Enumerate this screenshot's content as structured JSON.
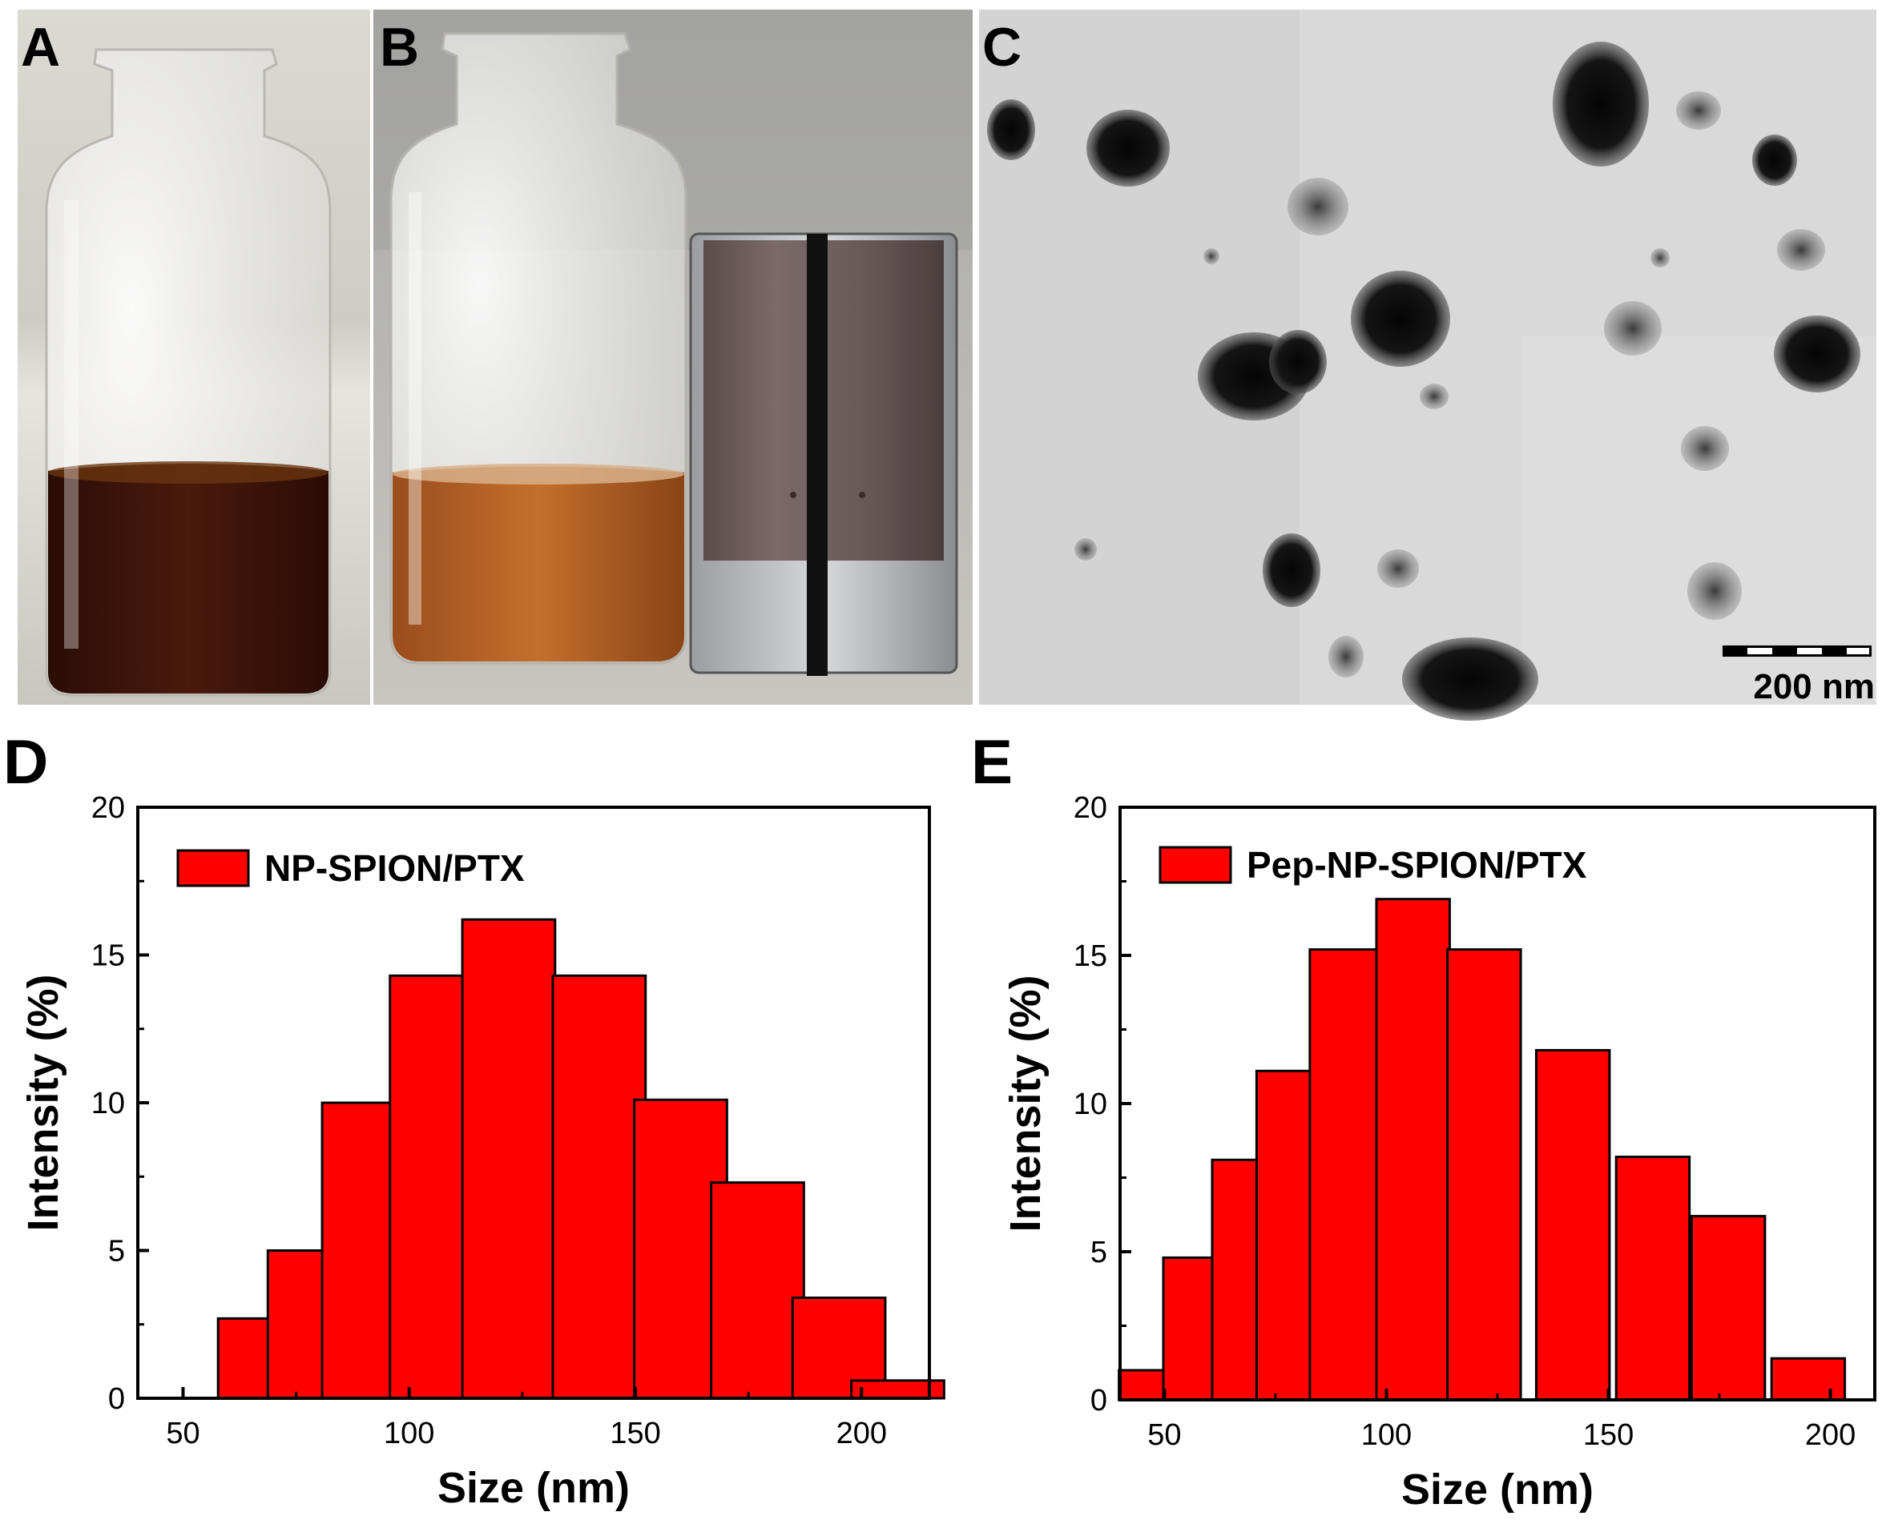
{
  "panels": {
    "A": {
      "letter": "A"
    },
    "B": {
      "letter": "B"
    },
    "C": {
      "letter": "C",
      "scalebar_label": "200 nm"
    },
    "D": {
      "letter": "D"
    },
    "E": {
      "letter": "E"
    }
  },
  "colors": {
    "bar": "#ff0000",
    "bar_edge": "#000000",
    "axis": "#000000"
  },
  "chart_data": [
    {
      "panel": "D",
      "type": "bar",
      "xlabel": "Size (nm)",
      "ylabel": "Intensity (%)",
      "xlim": [
        40,
        215
      ],
      "ylim": [
        0,
        20
      ],
      "xticks": [
        50,
        100,
        150,
        200
      ],
      "yticks": [
        0,
        5,
        10,
        15,
        20
      ],
      "legend": "top-left",
      "series": [
        {
          "name": "NP-SPION/PTX",
          "x": [
            68,
            79,
            91,
            106,
            122,
            142,
            160,
            177,
            195,
            208
          ],
          "values": [
            2.7,
            5.0,
            10.0,
            14.3,
            16.2,
            14.3,
            10.1,
            7.3,
            3.4,
            0.6
          ]
        }
      ]
    },
    {
      "panel": "E",
      "type": "bar",
      "xlabel": "Size (nm)",
      "ylabel": "Intensity (%)",
      "xlim": [
        40,
        210
      ],
      "ylim": [
        0,
        20
      ],
      "xticks": [
        50,
        100,
        150,
        200
      ],
      "yticks": [
        0,
        5,
        10,
        15,
        20
      ],
      "legend": "top-left",
      "series": [
        {
          "name": "Pep-NP-SPION/PTX",
          "x": [
            48,
            58,
            69,
            79,
            91,
            106,
            122,
            142,
            160,
            177,
            195
          ],
          "values": [
            1.0,
            4.8,
            8.1,
            11.1,
            15.2,
            16.9,
            15.2,
            11.8,
            8.2,
            6.2,
            1.4
          ]
        }
      ]
    }
  ]
}
